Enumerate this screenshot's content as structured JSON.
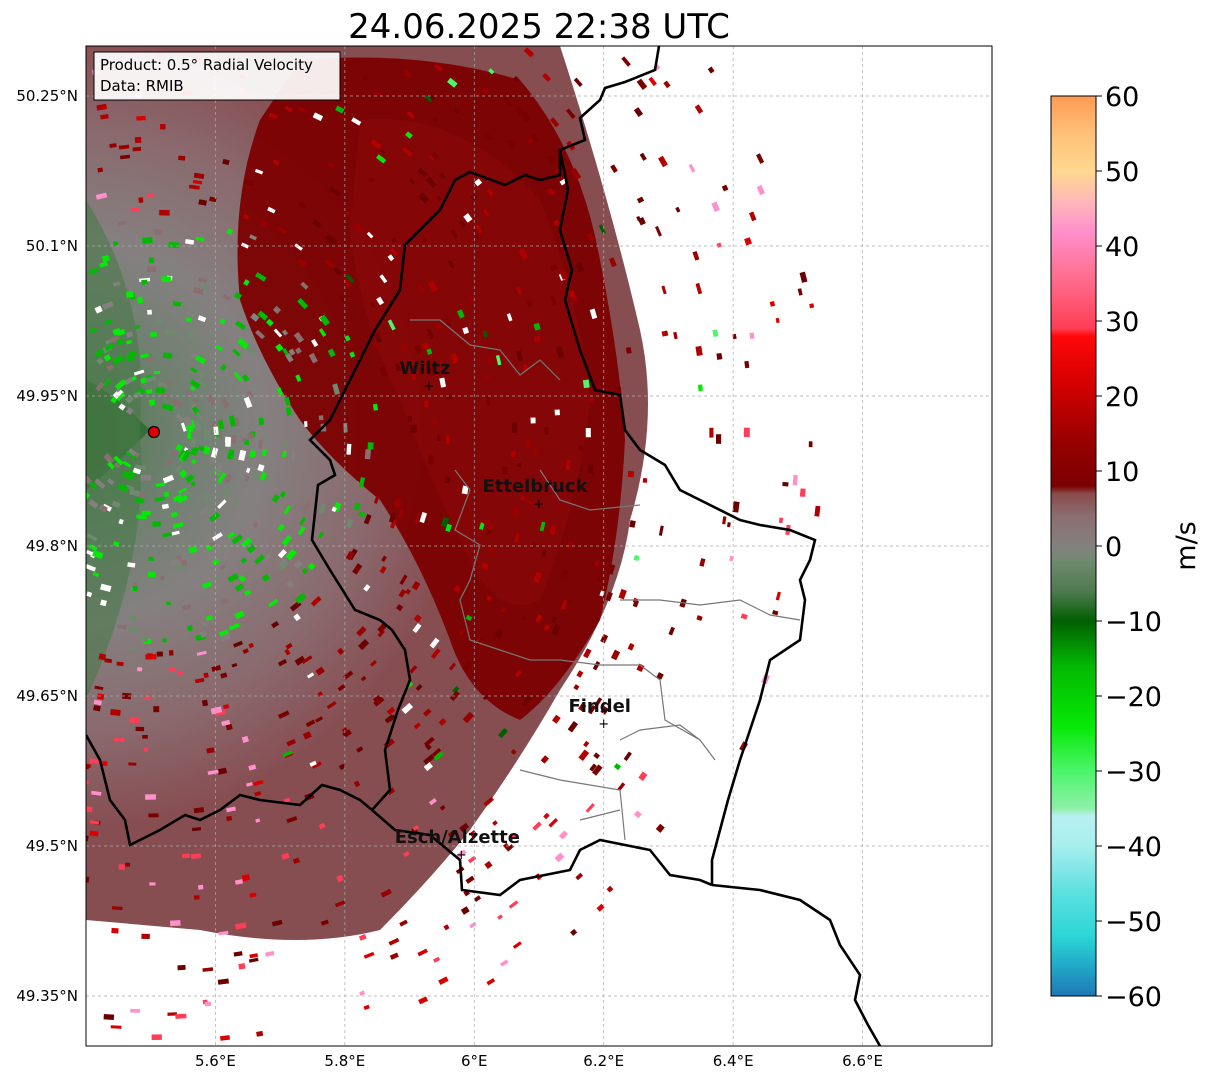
{
  "map": {
    "title": "24.06.2025 22:38 UTC",
    "info_box": {
      "product": "Product: 0.5° Radial Velocity",
      "data": "Data: RMIB"
    },
    "lon_ticks": [
      {
        "value": 5.6,
        "label": "5.6°E"
      },
      {
        "value": 5.8,
        "label": "5.8°E"
      },
      {
        "value": 6.0,
        "label": "6°E"
      },
      {
        "value": 6.2,
        "label": "6.2°E"
      },
      {
        "value": 6.4,
        "label": "6.4°E"
      },
      {
        "value": 6.6,
        "label": "6.6°E"
      }
    ],
    "lat_ticks": [
      {
        "value": 50.25,
        "label": "50.25°N"
      },
      {
        "value": 50.1,
        "label": "50.1°N"
      },
      {
        "value": 49.95,
        "label": "49.95°N"
      },
      {
        "value": 49.8,
        "label": "49.8°N"
      },
      {
        "value": 49.65,
        "label": "49.65°N"
      },
      {
        "value": 49.5,
        "label": "49.5°N"
      },
      {
        "value": 49.35,
        "label": "49.35°N"
      }
    ],
    "lon_range": [
      5.4,
      6.8
    ],
    "lat_range": [
      49.3,
      50.3
    ],
    "radar_site": {
      "lon": 5.505,
      "lat": 49.914
    },
    "cities": [
      {
        "name": "Wiltz",
        "lon": 5.93,
        "lat": 49.966
      },
      {
        "name": "Ettelbruck",
        "lon": 6.1,
        "lat": 49.848
      },
      {
        "name": "Findel",
        "lon": 6.2,
        "lat": 49.628
      },
      {
        "name": "Esch/Alzette",
        "lon": 5.98,
        "lat": 49.497
      }
    ],
    "grid": true
  },
  "colorbar": {
    "label": "m/s",
    "min": -60,
    "max": 60,
    "ticks": [
      {
        "value": 60,
        "label": "60"
      },
      {
        "value": 50,
        "label": "50"
      },
      {
        "value": 40,
        "label": "40"
      },
      {
        "value": 30,
        "label": "30"
      },
      {
        "value": 20,
        "label": "20"
      },
      {
        "value": 10,
        "label": "10"
      },
      {
        "value": 0,
        "label": "0"
      },
      {
        "value": -10,
        "label": "−10"
      },
      {
        "value": -20,
        "label": "−20"
      },
      {
        "value": -30,
        "label": "−30"
      },
      {
        "value": -40,
        "label": "−40"
      },
      {
        "value": -50,
        "label": "−50"
      },
      {
        "value": -60,
        "label": "−60"
      }
    ],
    "stops": [
      {
        "value": -60,
        "color": "#1f77b4"
      },
      {
        "value": -56,
        "color": "#20a9c8"
      },
      {
        "value": -52,
        "color": "#2bd6d6"
      },
      {
        "value": -46,
        "color": "#5ee0e0"
      },
      {
        "value": -40,
        "color": "#a8eeee"
      },
      {
        "value": -36,
        "color": "#b8f0f0"
      },
      {
        "value": -35,
        "color": "#8ef0a8"
      },
      {
        "value": -30,
        "color": "#4cf56a"
      },
      {
        "value": -24,
        "color": "#06e806"
      },
      {
        "value": -16,
        "color": "#03b803"
      },
      {
        "value": -10,
        "color": "#015f01"
      },
      {
        "value": -6,
        "color": "#4f7a4f"
      },
      {
        "value": -2,
        "color": "#6f8a6f"
      },
      {
        "value": 0,
        "color": "#858080"
      },
      {
        "value": 4,
        "color": "#8a6e70"
      },
      {
        "value": 7,
        "color": "#8a4a4a"
      },
      {
        "value": 8,
        "color": "#7a0000"
      },
      {
        "value": 14,
        "color": "#990000"
      },
      {
        "value": 22,
        "color": "#d80000"
      },
      {
        "value": 28,
        "color": "#ff0808"
      },
      {
        "value": 29,
        "color": "#ff3d55"
      },
      {
        "value": 36,
        "color": "#ff6f90"
      },
      {
        "value": 42,
        "color": "#ff90cc"
      },
      {
        "value": 46,
        "color": "#ffb8b8"
      },
      {
        "value": 50,
        "color": "#ffd890"
      },
      {
        "value": 55,
        "color": "#ffc078"
      },
      {
        "value": 60,
        "color": "#ff9a55"
      }
    ]
  }
}
